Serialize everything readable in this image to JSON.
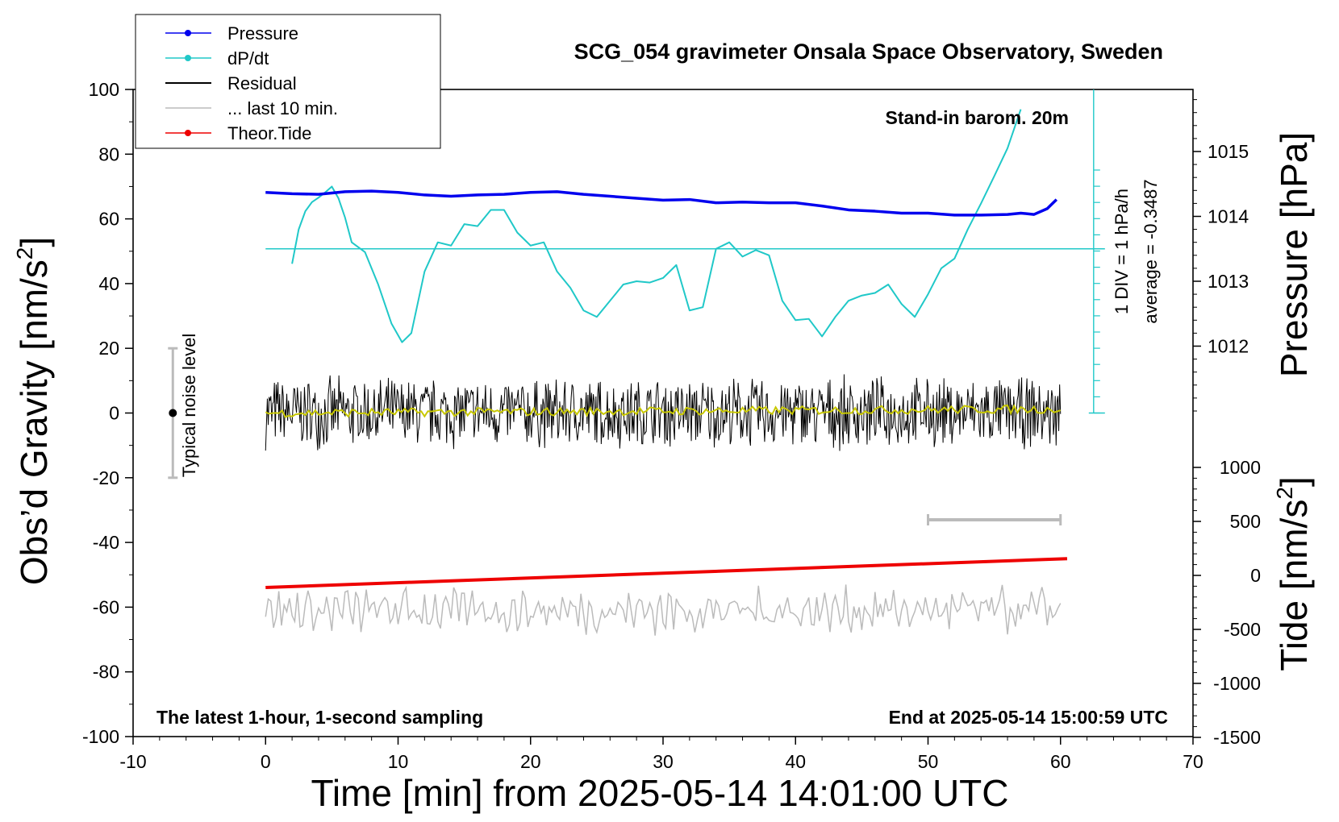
{
  "chart_data": {
    "type": "line",
    "title": "SCG_054 gravimeter Onsala Space Observatory, Sweden",
    "xlabel": "Time [min] from 2025-05-14 14:01:00 UTC",
    "ylabel_left": "Obs’d Gravity [nm/s",
    "ylabel_left_sup": "2",
    "ylabel_left_close": "]",
    "ylabel_right_pressure": "Pressure [hPa]",
    "ylabel_right_tide": "Tide [nm/s",
    "ylabel_right_tide_sup": "2",
    "ylabel_right_tide_close": "]",
    "xlim": [
      -10,
      70
    ],
    "ylim": [
      -100,
      100
    ],
    "pressure_lim": [
      1011,
      1016
    ],
    "tide_lim": [
      -1500,
      1500
    ],
    "x_ticks": [
      "-10",
      "0",
      "10",
      "20",
      "30",
      "40",
      "50",
      "60",
      "70"
    ],
    "y_ticks": [
      "-100",
      "-80",
      "-60",
      "-40",
      "-20",
      "0",
      "20",
      "40",
      "60",
      "80",
      "100"
    ],
    "pressure_ticks": [
      "1012",
      "1013",
      "1014",
      "1015"
    ],
    "tide_ticks": [
      "-1500",
      "-1000",
      "-500",
      "0",
      "500",
      "1000"
    ],
    "annotations": {
      "stand_in": "Stand-in barom. 20m",
      "div": "1 DIV = 1 hPa/h",
      "average": "average = -0.3487",
      "noise": "Typical noise level",
      "latest": "The latest 1-hour, 1-second sampling",
      "end": "End at 2025-05-14 15:00:59 UTC"
    },
    "legend": [
      "Pressure",
      "dP/dt",
      "Residual",
      "... last 10 min.",
      "Theor.Tide"
    ],
    "legend_position": "top-left",
    "series": [
      {
        "name": "Pressure",
        "color": "#0000ee",
        "axis": "pressure",
        "x": [
          0,
          2,
          4,
          6,
          8,
          10,
          12,
          14,
          16,
          18,
          20,
          22,
          24,
          26,
          28,
          30,
          32,
          34,
          36,
          38,
          40,
          42,
          44,
          46,
          48,
          50,
          52,
          54,
          56,
          57,
          58,
          59,
          59.7
        ],
        "values": [
          1014.37,
          1014.35,
          1014.34,
          1014.38,
          1014.39,
          1014.37,
          1014.33,
          1014.31,
          1014.33,
          1014.34,
          1014.37,
          1014.38,
          1014.34,
          1014.31,
          1014.28,
          1014.25,
          1014.26,
          1014.21,
          1014.22,
          1014.21,
          1014.21,
          1014.16,
          1014.1,
          1014.08,
          1014.05,
          1014.05,
          1014.02,
          1014.02,
          1014.03,
          1014.05,
          1014.03,
          1014.12,
          1014.26
        ]
      },
      {
        "name": "dP/dt",
        "color": "#20c8c8",
        "axis": "dpdt",
        "x": [
          2,
          2.5,
          3,
          3.5,
          4,
          4.5,
          5,
          5.5,
          6,
          6.5,
          7.5,
          8.5,
          9.5,
          10.3,
          11,
          12,
          13,
          14,
          15,
          16,
          17,
          18,
          19,
          20,
          21,
          22,
          23,
          24,
          25,
          26,
          27,
          28,
          29,
          30,
          31,
          32,
          33,
          34,
          35,
          36,
          37,
          38,
          39,
          40,
          41,
          42,
          43,
          44,
          45,
          46,
          47,
          48,
          49,
          50,
          51,
          52,
          53,
          54,
          55,
          56,
          57
        ],
        "values": [
          -0.23,
          0.3,
          0.58,
          0.72,
          0.79,
          0.87,
          0.96,
          0.78,
          0.48,
          0.1,
          -0.05,
          -0.55,
          -1.15,
          -1.44,
          -1.3,
          -0.35,
          0.1,
          0.05,
          0.38,
          0.35,
          0.6,
          0.6,
          0.25,
          0.05,
          0.1,
          -0.35,
          -0.6,
          -0.95,
          -1.05,
          -0.8,
          -0.55,
          -0.5,
          -0.52,
          -0.45,
          -0.25,
          -0.95,
          -0.9,
          0.0,
          0.1,
          -0.12,
          -0.02,
          -0.1,
          -0.8,
          -1.1,
          -1.08,
          -1.35,
          -1.05,
          -0.8,
          -0.72,
          -0.68,
          -0.55,
          -0.85,
          -1.05,
          -0.7,
          -0.3,
          -0.15,
          0.3,
          0.7,
          1.12,
          1.55,
          2.15
        ]
      },
      {
        "name": "Residual",
        "color": "#000000",
        "axis": "gravity",
        "x_range": [
          0,
          60
        ],
        "mean": 0,
        "range": [
          -14,
          12
        ]
      },
      {
        "name": "... last 10 min.",
        "color": "#bbbbbb",
        "axis": "gravity",
        "x_range": [
          0,
          60
        ],
        "mean": -61,
        "range": [
          -71,
          -51
        ]
      },
      {
        "name": "Theor.Tide",
        "color": "#ee0000",
        "axis": "tide",
        "x": [
          0,
          60.5
        ],
        "values": [
          -112,
          155
        ]
      }
    ],
    "dpdt_scale": {
      "zero": 1013.5,
      "range_x": [
        50,
        60
      ]
    }
  }
}
